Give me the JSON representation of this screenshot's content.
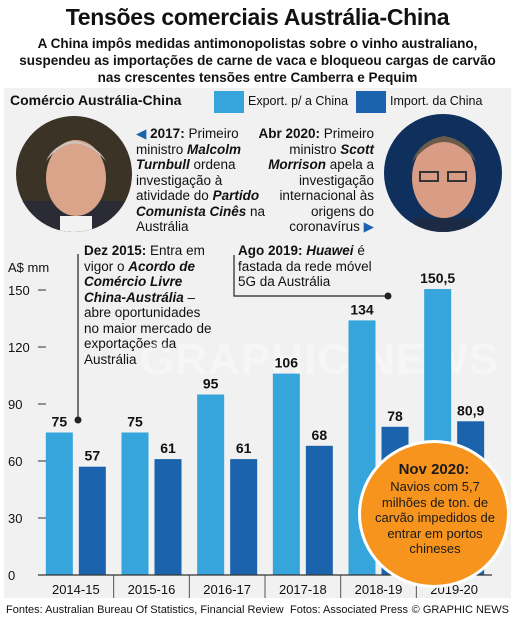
{
  "title": "Tensões comerciais Austrália-China",
  "subtitle": "A China impôs medidas antimonopolistas sobre o vinho australiano, suspendeu as importações de carne de vaca e bloqueou cargas de carvão nas crescentes tensões entre Camberra e Pequim",
  "section_title": "Comércio Austrália-China",
  "colors": {
    "export": "#35a5dc",
    "import": "#1b64ad",
    "callout": "#f7941d"
  },
  "annotations": {
    "a2017": {
      "year": "2017:",
      "t1": " Primeiro ministro ",
      "name": "Malcolm Turnbull",
      "t2": " ordena investigação à atividade do ",
      "party": "Partido Comunista Cinês",
      "t3": " na Austrália"
    },
    "a2020": {
      "year": "Abr 2020:",
      "t1": " Primeiro ministro ",
      "name": "Scott Morrison",
      "t2": " apela a investigação internacional às origens do coronavírus"
    },
    "dez2015": {
      "year": "Dez 2015:",
      "t1": " Entra em vigor o ",
      "name": "Acordo de Comércio Livre China-Austrália",
      "t2": " – abre oportunidades no maior mercado de exportações da Austrália"
    },
    "ago2019": {
      "year": "Ago 2019:",
      "name": "Huawei",
      "t1": " é fastada da rede móvel 5G da Austrália"
    }
  },
  "callout": {
    "title": "Nov 2020:",
    "text": "Navios com 5,7 milhões de ton. de carvão impedidos de entrar em portos chineses"
  },
  "footer": {
    "sources": "Fontes: Australian Bureau Of Statistics, Financial Review",
    "photos": "Fotos: Associated Press",
    "brand": "© GRAPHIC NEWS"
  },
  "watermark": "GRAPHIC NEWS",
  "chart_data": {
    "type": "bar",
    "categories": [
      "2014-15",
      "2015-16",
      "2016-17",
      "2017-18",
      "2018-19",
      "2019-20"
    ],
    "series": [
      {
        "name": "Export. p/ a China",
        "values": [
          75,
          75,
          95,
          106,
          134,
          150.5
        ],
        "labels": [
          "75",
          "75",
          "95",
          "106",
          "134",
          "150,5"
        ]
      },
      {
        "name": "Import. da China",
        "values": [
          57,
          61,
          61,
          68,
          78,
          80.9
        ],
        "labels": [
          "57",
          "61",
          "61",
          "68",
          "78",
          "80,9"
        ]
      }
    ],
    "ylabel": "A$ mm",
    "yticks": [
      0,
      30,
      60,
      90,
      120,
      150
    ],
    "ylim": [
      0,
      160
    ],
    "grid": false,
    "legend": "top"
  }
}
